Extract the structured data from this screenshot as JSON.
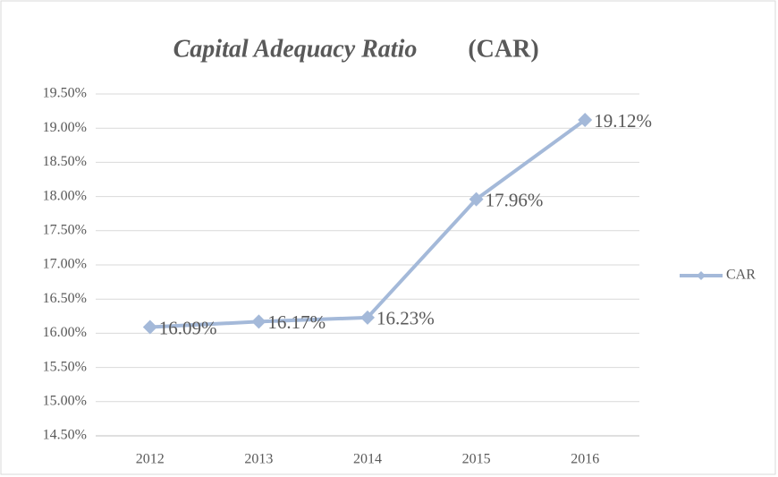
{
  "chart_data": {
    "type": "line",
    "title": [
      "Capital Adequacy Ratio",
      "(CAR)"
    ],
    "categories": [
      "2012",
      "2013",
      "2014",
      "2015",
      "2016"
    ],
    "series": [
      {
        "name": "CAR",
        "color": "#a4b9d9",
        "values": [
          16.09,
          16.17,
          16.23,
          17.96,
          19.12
        ],
        "value_labels": [
          "16.09%",
          "16.17%",
          "16.23%",
          "17.96%",
          "19.12%"
        ]
      }
    ],
    "ylim": [
      14.5,
      19.5
    ],
    "yticks": [
      {
        "value": 14.5,
        "label": "14.50%"
      },
      {
        "value": 15,
        "label": "15.00%"
      },
      {
        "value": 15.5,
        "label": "15.50%"
      },
      {
        "value": 16,
        "label": "16.00%"
      },
      {
        "value": 16.5,
        "label": "16.50%"
      },
      {
        "value": 17,
        "label": "17.00%"
      },
      {
        "value": 17.5,
        "label": "17.50%"
      },
      {
        "value": 18,
        "label": "18.00%"
      },
      {
        "value": 18.5,
        "label": "18.50%"
      },
      {
        "value": 19,
        "label": "19.00%"
      },
      {
        "value": 19.5,
        "label": "19.50%"
      }
    ],
    "grid": true,
    "legend": "right"
  }
}
